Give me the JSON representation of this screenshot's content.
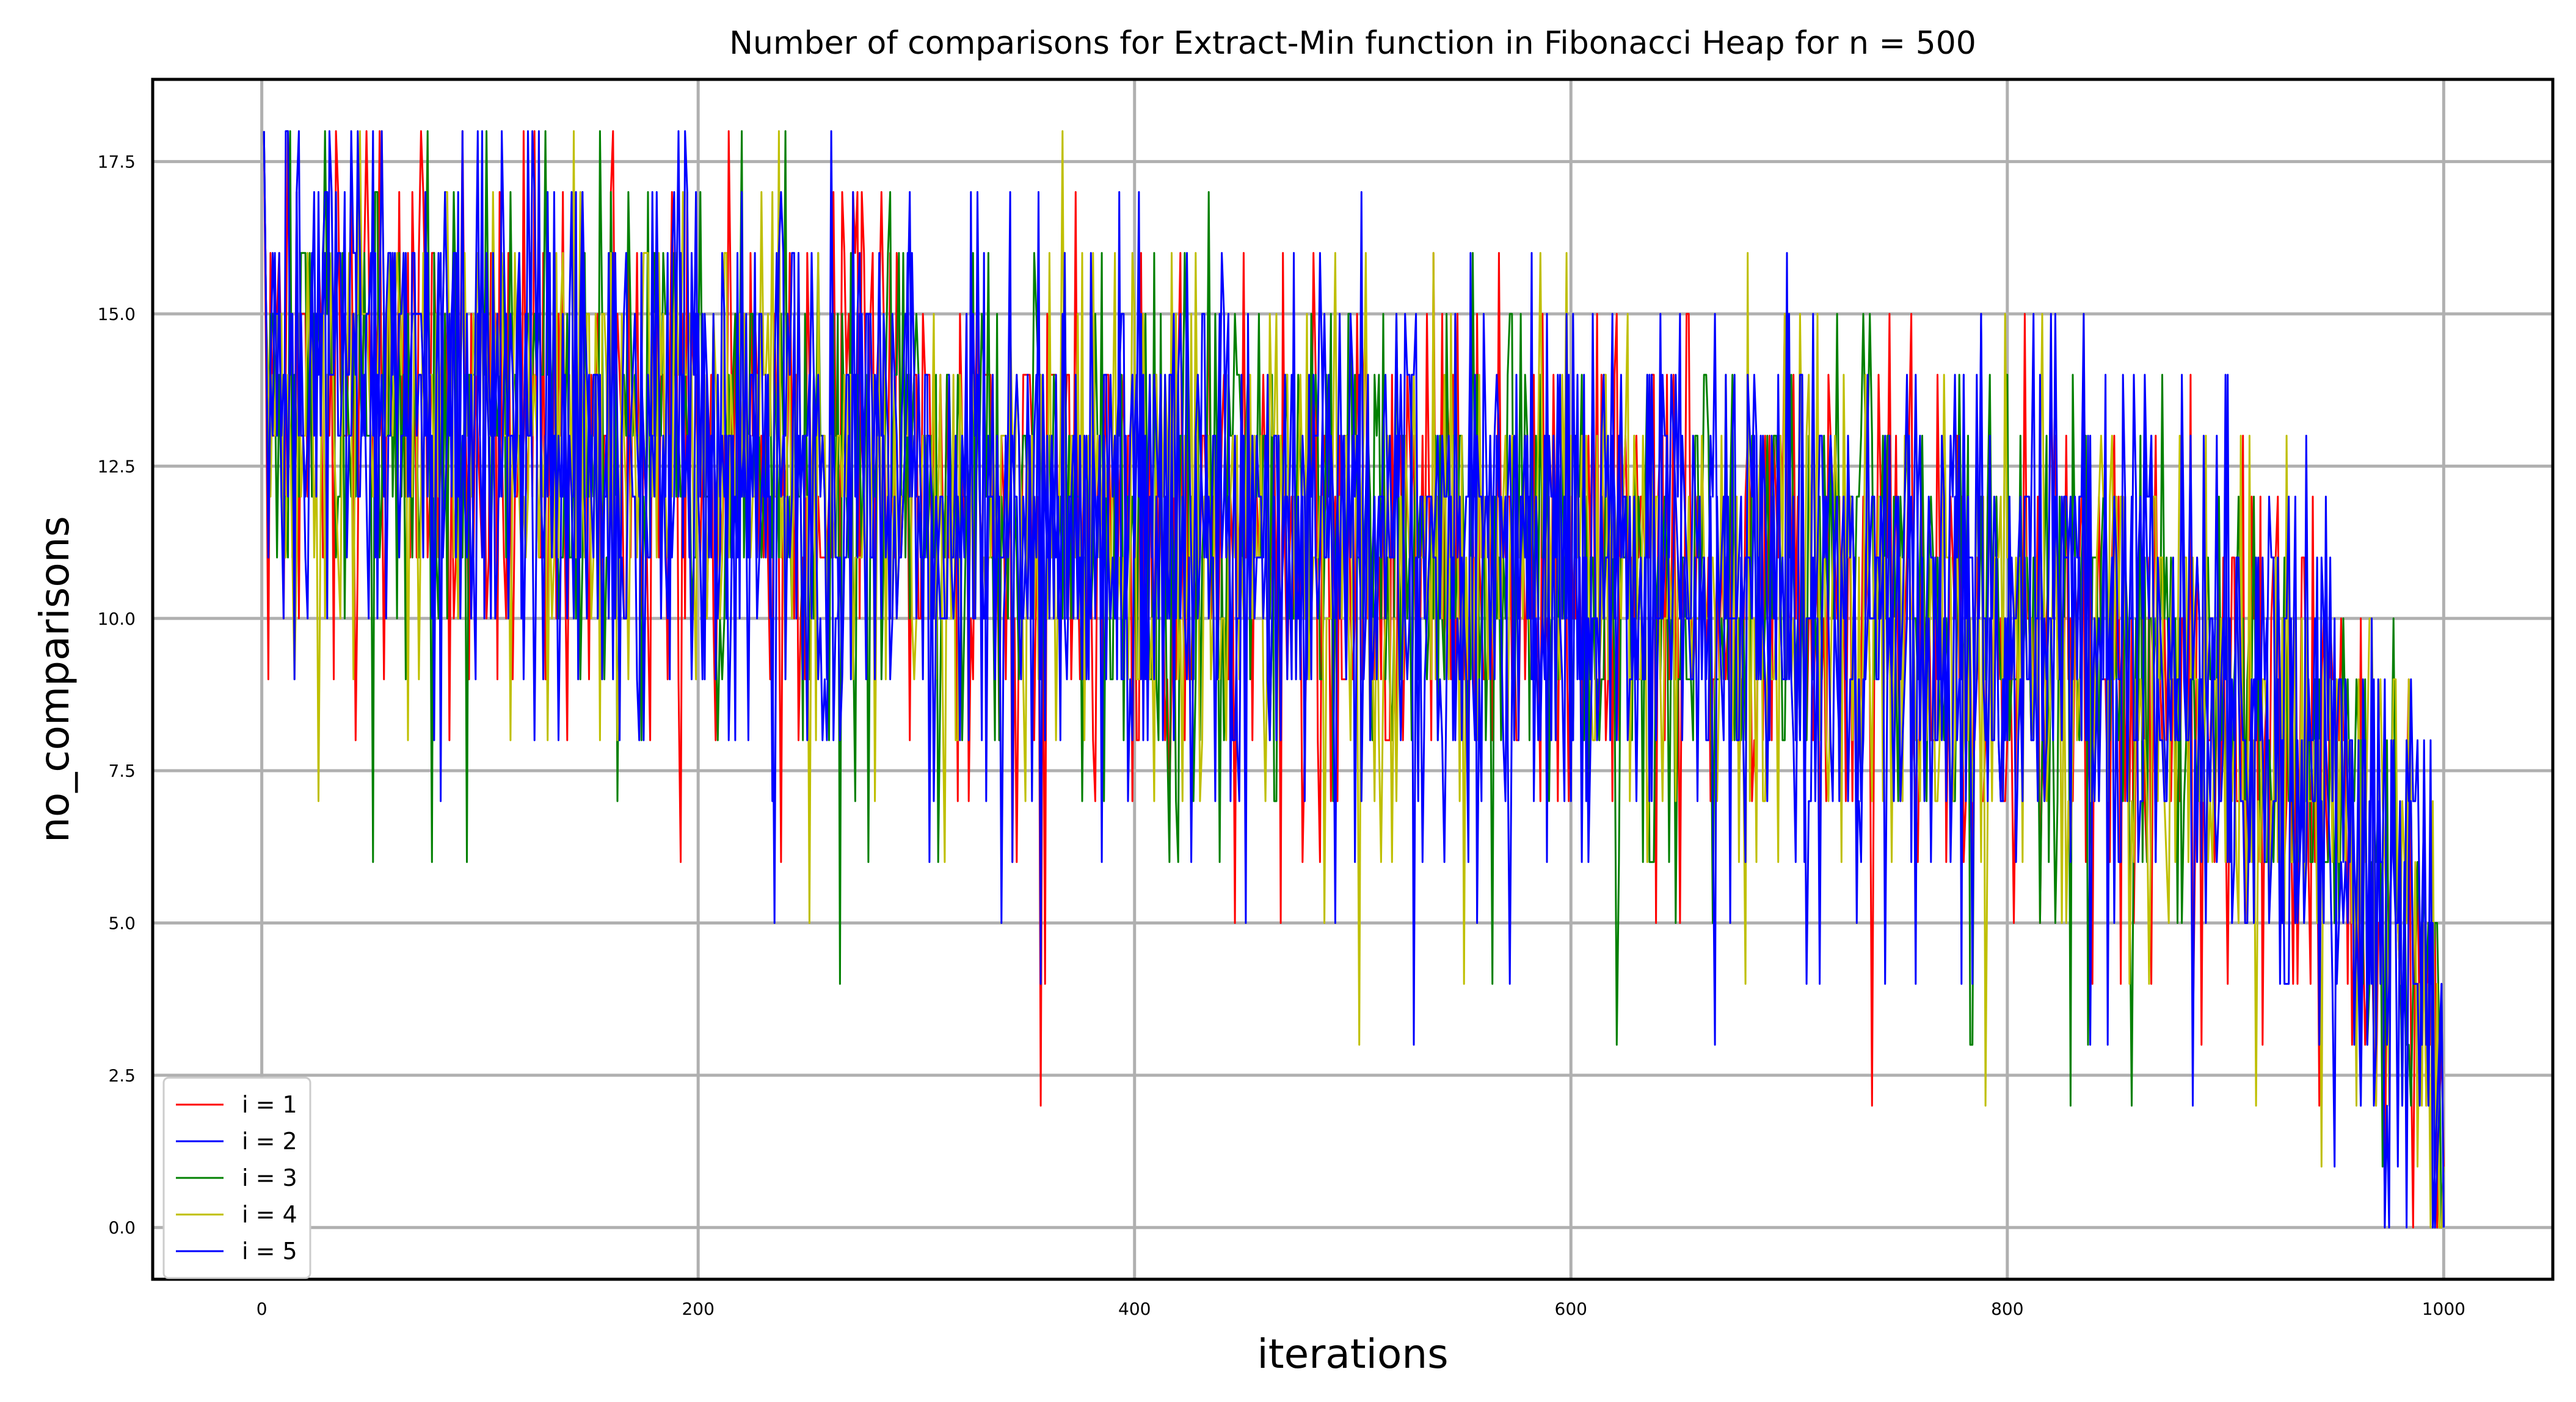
{
  "chart_data": {
    "type": "line",
    "title": "Number of comparisons for Extract-Min function in Fibonacci Heap for n = 500",
    "xlabel": "iterations",
    "ylabel": "no_comparisons",
    "xlim": [
      -50,
      1050
    ],
    "ylim": [
      -0.85,
      18.85
    ],
    "xticks": [
      0,
      200,
      400,
      600,
      800,
      1000
    ],
    "yticks": [
      0.0,
      2.5,
      5.0,
      7.5,
      10.0,
      12.5,
      15.0,
      17.5
    ],
    "xtick_labels": [
      "0",
      "200",
      "400",
      "600",
      "800",
      "1000"
    ],
    "ytick_labels": [
      "0.0",
      "2.5",
      "5.0",
      "7.5",
      "10.0",
      "12.5",
      "15.0",
      "17.5"
    ],
    "grid": true,
    "legend_position": "lower-left",
    "x_domain": [
      1,
      1000
    ],
    "trend_knots": [
      [
        1,
        14.5
      ],
      [
        120,
        13.5
      ],
      [
        200,
        13.0
      ],
      [
        300,
        12.4
      ],
      [
        400,
        11.8
      ],
      [
        500,
        11.5
      ],
      [
        600,
        11.0
      ],
      [
        700,
        10.6
      ],
      [
        800,
        10.0
      ],
      [
        880,
        9.2
      ],
      [
        940,
        7.5
      ],
      [
        970,
        6.0
      ],
      [
        990,
        4.0
      ],
      [
        1000,
        1.5
      ]
    ],
    "series": [
      {
        "name": "i = 1",
        "color": "#ff0000"
      },
      {
        "name": "i = 2",
        "color": "#0000ff"
      },
      {
        "name": "i = 3",
        "color": "#008000"
      },
      {
        "name": "i = 4",
        "color": "#bfbf00"
      },
      {
        "name": "i = 5",
        "color": "#0000ff"
      }
    ]
  }
}
